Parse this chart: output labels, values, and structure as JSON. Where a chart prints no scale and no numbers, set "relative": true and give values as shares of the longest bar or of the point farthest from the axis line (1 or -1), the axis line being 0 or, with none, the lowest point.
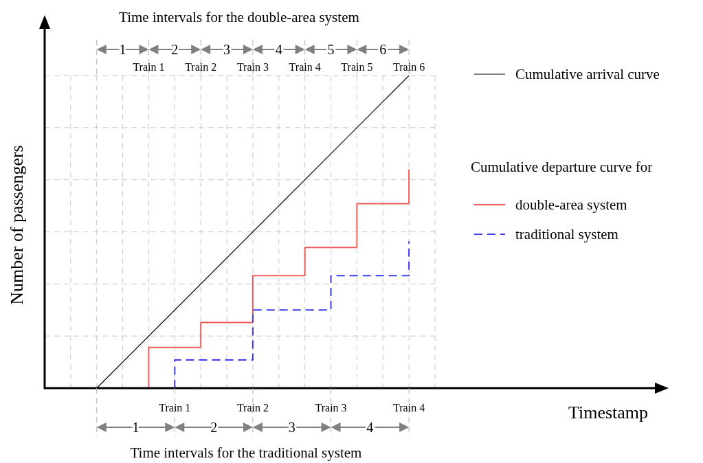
{
  "chart_data": {
    "type": "line",
    "relative": true,
    "ylabel": "Number of passengers",
    "legend_title": "Cumulative departure curve for",
    "legend": "right",
    "grid": true,
    "categories": [
      null,
      null,
      null,
      null,
      null,
      null,
      null,
      null,
      null,
      null,
      null,
      null,
      null,
      null,
      null,
      null
    ],
    "series": [
      {
        "name": "Cumulative arrival curve",
        "color": "#000000",
        "line_style": "solid",
        "values": [
          null,
          null,
          0,
          null,
          null,
          null,
          null,
          null,
          null,
          null,
          null,
          null,
          null,
          null,
          1,
          null
        ]
      },
      {
        "name": "double-area system",
        "type": "step",
        "color": "#f05a5a",
        "line_style": "solid",
        "values": [
          null,
          null,
          null,
          0,
          0.13,
          null,
          0.21,
          null,
          0.36,
          null,
          0.45,
          null,
          0.59,
          null,
          0.7,
          null
        ]
      },
      {
        "name": "traditional system",
        "type": "step",
        "color": "#3a3aee",
        "line_style": "dashed",
        "values": [
          null,
          null,
          null,
          null,
          0,
          0.09,
          null,
          null,
          0.25,
          null,
          null,
          0.36,
          null,
          null,
          0.47,
          null
        ]
      }
    ],
    "annotations": [
      "Time intervals for the double-area system",
      "1",
      "2",
      "3",
      "4",
      "5",
      "6",
      "Train 1",
      "Train 2",
      "Train 3",
      "Train 4",
      "Train 5",
      "Train 6",
      "Time intervals for the traditional system",
      "1",
      "2",
      "3",
      "4",
      "Train 1",
      "Train 2",
      "Train 3",
      "Train 4",
      "Timestamp"
    ]
  }
}
